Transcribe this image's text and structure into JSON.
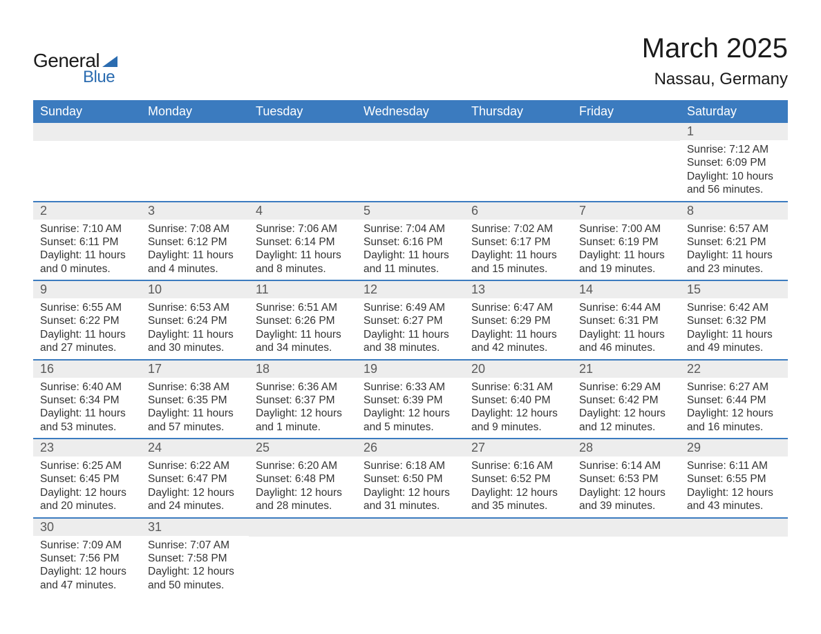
{
  "brand": {
    "part1": "General",
    "part2": "Blue",
    "accent_color": "#2b6cb0"
  },
  "title": "March 2025",
  "location": "Nassau, Germany",
  "colors": {
    "header_bg": "#3b7bbf",
    "header_fg": "#ffffff",
    "daynum_bg": "#ededed",
    "daynum_fg": "#595959",
    "body_fg": "#333333",
    "rule": "#3b7bbf"
  },
  "day_names": [
    "Sunday",
    "Monday",
    "Tuesday",
    "Wednesday",
    "Thursday",
    "Friday",
    "Saturday"
  ],
  "weeks": [
    [
      {
        "n": "",
        "sr": "",
        "ss": "",
        "dl": ""
      },
      {
        "n": "",
        "sr": "",
        "ss": "",
        "dl": ""
      },
      {
        "n": "",
        "sr": "",
        "ss": "",
        "dl": ""
      },
      {
        "n": "",
        "sr": "",
        "ss": "",
        "dl": ""
      },
      {
        "n": "",
        "sr": "",
        "ss": "",
        "dl": ""
      },
      {
        "n": "",
        "sr": "",
        "ss": "",
        "dl": ""
      },
      {
        "n": "1",
        "sr": "Sunrise: 7:12 AM",
        "ss": "Sunset: 6:09 PM",
        "dl": "Daylight: 10 hours and 56 minutes."
      }
    ],
    [
      {
        "n": "2",
        "sr": "Sunrise: 7:10 AM",
        "ss": "Sunset: 6:11 PM",
        "dl": "Daylight: 11 hours and 0 minutes."
      },
      {
        "n": "3",
        "sr": "Sunrise: 7:08 AM",
        "ss": "Sunset: 6:12 PM",
        "dl": "Daylight: 11 hours and 4 minutes."
      },
      {
        "n": "4",
        "sr": "Sunrise: 7:06 AM",
        "ss": "Sunset: 6:14 PM",
        "dl": "Daylight: 11 hours and 8 minutes."
      },
      {
        "n": "5",
        "sr": "Sunrise: 7:04 AM",
        "ss": "Sunset: 6:16 PM",
        "dl": "Daylight: 11 hours and 11 minutes."
      },
      {
        "n": "6",
        "sr": "Sunrise: 7:02 AM",
        "ss": "Sunset: 6:17 PM",
        "dl": "Daylight: 11 hours and 15 minutes."
      },
      {
        "n": "7",
        "sr": "Sunrise: 7:00 AM",
        "ss": "Sunset: 6:19 PM",
        "dl": "Daylight: 11 hours and 19 minutes."
      },
      {
        "n": "8",
        "sr": "Sunrise: 6:57 AM",
        "ss": "Sunset: 6:21 PM",
        "dl": "Daylight: 11 hours and 23 minutes."
      }
    ],
    [
      {
        "n": "9",
        "sr": "Sunrise: 6:55 AM",
        "ss": "Sunset: 6:22 PM",
        "dl": "Daylight: 11 hours and 27 minutes."
      },
      {
        "n": "10",
        "sr": "Sunrise: 6:53 AM",
        "ss": "Sunset: 6:24 PM",
        "dl": "Daylight: 11 hours and 30 minutes."
      },
      {
        "n": "11",
        "sr": "Sunrise: 6:51 AM",
        "ss": "Sunset: 6:26 PM",
        "dl": "Daylight: 11 hours and 34 minutes."
      },
      {
        "n": "12",
        "sr": "Sunrise: 6:49 AM",
        "ss": "Sunset: 6:27 PM",
        "dl": "Daylight: 11 hours and 38 minutes."
      },
      {
        "n": "13",
        "sr": "Sunrise: 6:47 AM",
        "ss": "Sunset: 6:29 PM",
        "dl": "Daylight: 11 hours and 42 minutes."
      },
      {
        "n": "14",
        "sr": "Sunrise: 6:44 AM",
        "ss": "Sunset: 6:31 PM",
        "dl": "Daylight: 11 hours and 46 minutes."
      },
      {
        "n": "15",
        "sr": "Sunrise: 6:42 AM",
        "ss": "Sunset: 6:32 PM",
        "dl": "Daylight: 11 hours and 49 minutes."
      }
    ],
    [
      {
        "n": "16",
        "sr": "Sunrise: 6:40 AM",
        "ss": "Sunset: 6:34 PM",
        "dl": "Daylight: 11 hours and 53 minutes."
      },
      {
        "n": "17",
        "sr": "Sunrise: 6:38 AM",
        "ss": "Sunset: 6:35 PM",
        "dl": "Daylight: 11 hours and 57 minutes."
      },
      {
        "n": "18",
        "sr": "Sunrise: 6:36 AM",
        "ss": "Sunset: 6:37 PM",
        "dl": "Daylight: 12 hours and 1 minute."
      },
      {
        "n": "19",
        "sr": "Sunrise: 6:33 AM",
        "ss": "Sunset: 6:39 PM",
        "dl": "Daylight: 12 hours and 5 minutes."
      },
      {
        "n": "20",
        "sr": "Sunrise: 6:31 AM",
        "ss": "Sunset: 6:40 PM",
        "dl": "Daylight: 12 hours and 9 minutes."
      },
      {
        "n": "21",
        "sr": "Sunrise: 6:29 AM",
        "ss": "Sunset: 6:42 PM",
        "dl": "Daylight: 12 hours and 12 minutes."
      },
      {
        "n": "22",
        "sr": "Sunrise: 6:27 AM",
        "ss": "Sunset: 6:44 PM",
        "dl": "Daylight: 12 hours and 16 minutes."
      }
    ],
    [
      {
        "n": "23",
        "sr": "Sunrise: 6:25 AM",
        "ss": "Sunset: 6:45 PM",
        "dl": "Daylight: 12 hours and 20 minutes."
      },
      {
        "n": "24",
        "sr": "Sunrise: 6:22 AM",
        "ss": "Sunset: 6:47 PM",
        "dl": "Daylight: 12 hours and 24 minutes."
      },
      {
        "n": "25",
        "sr": "Sunrise: 6:20 AM",
        "ss": "Sunset: 6:48 PM",
        "dl": "Daylight: 12 hours and 28 minutes."
      },
      {
        "n": "26",
        "sr": "Sunrise: 6:18 AM",
        "ss": "Sunset: 6:50 PM",
        "dl": "Daylight: 12 hours and 31 minutes."
      },
      {
        "n": "27",
        "sr": "Sunrise: 6:16 AM",
        "ss": "Sunset: 6:52 PM",
        "dl": "Daylight: 12 hours and 35 minutes."
      },
      {
        "n": "28",
        "sr": "Sunrise: 6:14 AM",
        "ss": "Sunset: 6:53 PM",
        "dl": "Daylight: 12 hours and 39 minutes."
      },
      {
        "n": "29",
        "sr": "Sunrise: 6:11 AM",
        "ss": "Sunset: 6:55 PM",
        "dl": "Daylight: 12 hours and 43 minutes."
      }
    ],
    [
      {
        "n": "30",
        "sr": "Sunrise: 7:09 AM",
        "ss": "Sunset: 7:56 PM",
        "dl": "Daylight: 12 hours and 47 minutes."
      },
      {
        "n": "31",
        "sr": "Sunrise: 7:07 AM",
        "ss": "Sunset: 7:58 PM",
        "dl": "Daylight: 12 hours and 50 minutes."
      },
      {
        "n": "",
        "sr": "",
        "ss": "",
        "dl": ""
      },
      {
        "n": "",
        "sr": "",
        "ss": "",
        "dl": ""
      },
      {
        "n": "",
        "sr": "",
        "ss": "",
        "dl": ""
      },
      {
        "n": "",
        "sr": "",
        "ss": "",
        "dl": ""
      },
      {
        "n": "",
        "sr": "",
        "ss": "",
        "dl": ""
      }
    ]
  ]
}
